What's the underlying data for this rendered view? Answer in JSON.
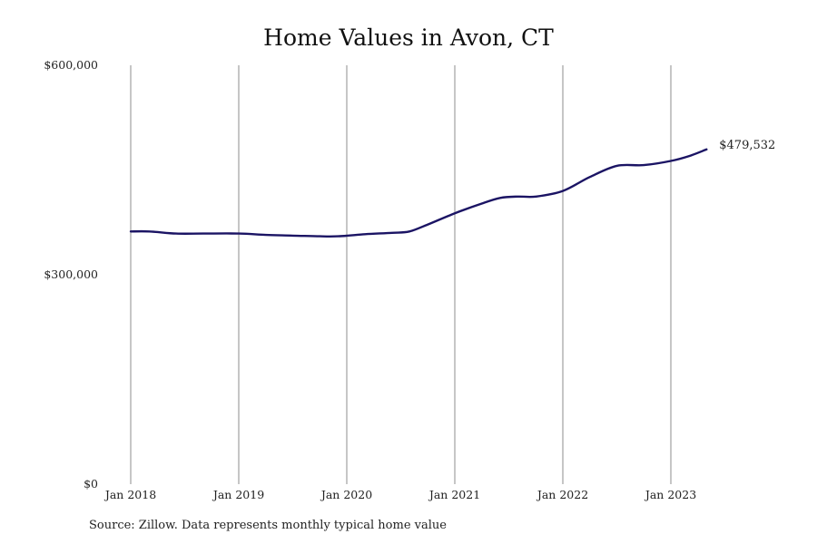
{
  "chart_data": {
    "type": "line",
    "title": "Home Values in Avon, CT",
    "xlabel": "",
    "ylabel": "",
    "ylim": [
      0,
      600000
    ],
    "y_ticks": [
      {
        "value": 0,
        "label": "$0"
      },
      {
        "value": 300000,
        "label": "$300,000"
      },
      {
        "value": 600000,
        "label": "$600,000"
      }
    ],
    "x_ticks": [
      {
        "value": 2018.0,
        "label": "Jan 2018"
      },
      {
        "value": 2019.0,
        "label": "Jan 2019"
      },
      {
        "value": 2020.0,
        "label": "Jan 2020"
      },
      {
        "value": 2021.0,
        "label": "Jan 2021"
      },
      {
        "value": 2022.0,
        "label": "Jan 2022"
      },
      {
        "value": 2023.0,
        "label": "Jan 2023"
      }
    ],
    "xlim": [
      2018.0,
      2023.33
    ],
    "grid": {
      "vertical": true,
      "horizontal": false
    },
    "line_color": "#1b1464",
    "series": [
      {
        "x": [
          2018.0,
          2018.17,
          2018.42,
          2018.67,
          2019.0,
          2019.25,
          2019.5,
          2019.75,
          2019.92,
          2020.17,
          2020.42,
          2020.58,
          2020.75,
          2021.0,
          2021.25,
          2021.42,
          2021.58,
          2021.75,
          2022.0,
          2022.25,
          2022.5,
          2022.75,
          2023.0,
          2023.17,
          2023.33
        ],
        "y": [
          362000,
          362000,
          359000,
          359000,
          359000,
          357000,
          356000,
          355000,
          355000,
          358000,
          360000,
          362000,
          372000,
          388000,
          402000,
          410000,
          412000,
          412000,
          420000,
          440000,
          456000,
          457000,
          463000,
          470000,
          479532
        ]
      }
    ],
    "end_label": "$479,532"
  },
  "footer": {
    "source": "Source: Zillow. Data represents monthly typical home value"
  }
}
